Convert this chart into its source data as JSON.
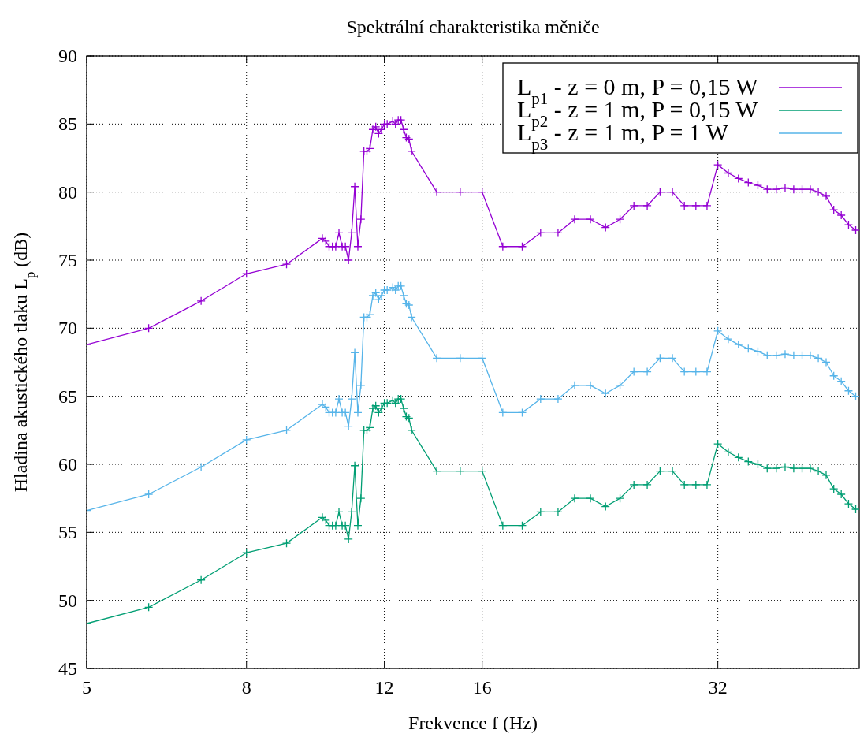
{
  "chart_data": {
    "type": "line",
    "title": "Spektrální charakteristika měniče",
    "xlabel": "Frekvence f (Hz)",
    "ylabel": "Hladina akustického tlaku L$_{p}$ (dB)",
    "log": "x",
    "xlim": [
      5,
      48.5
    ],
    "xticks": [
      5,
      8,
      12,
      16,
      32
    ],
    "ylim": [
      45,
      90
    ],
    "yticks": [
      45,
      50,
      55,
      60,
      65,
      70,
      75,
      80,
      85,
      90
    ],
    "grid": true,
    "legend": "top right",
    "marker": "cross",
    "line_style": "solid",
    "x": [
      5,
      6,
      7,
      8,
      9,
      10,
      10.1,
      10.2,
      10.3,
      10.4,
      10.5,
      10.6,
      10.7,
      10.8,
      10.9,
      11,
      11.1,
      11.2,
      11.3,
      11.4,
      11.5,
      11.6,
      11.7,
      11.8,
      11.9,
      12,
      12.1,
      12.3,
      12.4,
      12.5,
      12.6,
      12.7,
      12.8,
      12.9,
      13,
      14,
      15,
      16,
      17,
      18,
      19,
      20,
      21,
      22,
      23,
      24,
      25,
      26,
      27,
      28,
      29,
      30,
      31,
      32,
      33,
      34,
      35,
      36,
      37,
      38,
      39,
      40,
      41,
      42,
      43,
      44,
      45,
      46,
      47,
      48
    ],
    "series": [
      {
        "name": "L$_{p1}$ - z = 0 m, P = 0,15 W",
        "color": "#9400d3",
        "values": [
          68.8,
          70.0,
          72.0,
          74.0,
          74.7,
          76.6,
          76.4,
          76.0,
          76.0,
          76.0,
          77.0,
          76.0,
          76.0,
          75.0,
          77.0,
          80.4,
          76.0,
          78.0,
          83.0,
          83.0,
          83.2,
          84.6,
          84.8,
          84.3,
          84.6,
          85.0,
          85.0,
          85.2,
          85.0,
          85.3,
          85.3,
          84.6,
          84.0,
          83.9,
          83.0,
          80,
          80,
          80,
          76,
          76,
          77,
          77,
          78,
          78,
          77.4,
          78,
          79,
          79,
          80,
          80,
          79,
          79,
          79,
          82.0,
          81.4,
          81.0,
          80.7,
          80.5,
          80.2,
          80.2,
          80.3,
          80.2,
          80.2,
          80.2,
          80.0,
          79.7,
          78.7,
          78.3,
          77.6,
          77.2
        ]
      },
      {
        "name": "L$_{p2}$ - z = 1 m, P = 0,15 W",
        "color": "#009e73",
        "values": [
          48.3,
          49.5,
          51.5,
          53.5,
          54.2,
          56.1,
          55.9,
          55.5,
          55.5,
          55.5,
          56.5,
          55.5,
          55.5,
          54.5,
          56.5,
          59.9,
          55.5,
          57.5,
          62.5,
          62.5,
          62.7,
          64.1,
          64.3,
          63.8,
          64.1,
          64.5,
          64.5,
          64.7,
          64.5,
          64.8,
          64.8,
          64.1,
          63.5,
          63.4,
          62.5,
          59.5,
          59.5,
          59.5,
          55.5,
          55.5,
          56.5,
          56.5,
          57.5,
          57.5,
          56.9,
          57.5,
          58.5,
          58.5,
          59.5,
          59.5,
          58.5,
          58.5,
          58.5,
          61.5,
          60.9,
          60.5,
          60.2,
          60.0,
          59.7,
          59.7,
          59.8,
          59.7,
          59.7,
          59.7,
          59.5,
          59.2,
          58.2,
          57.8,
          57.1,
          56.7
        ]
      },
      {
        "name": "L$_{p3}$ - z = 1 m, P = 1 W",
        "color": "#56b4e9",
        "values": [
          56.6,
          57.8,
          59.8,
          61.8,
          62.5,
          64.4,
          64.2,
          63.8,
          63.8,
          63.8,
          64.8,
          63.8,
          63.8,
          62.8,
          64.8,
          68.2,
          63.8,
          65.8,
          70.8,
          70.8,
          71.0,
          72.4,
          72.6,
          72.1,
          72.4,
          72.8,
          72.8,
          73.0,
          72.8,
          73.1,
          73.1,
          72.4,
          71.8,
          71.7,
          70.8,
          67.8,
          67.8,
          67.8,
          63.8,
          63.8,
          64.8,
          64.8,
          65.8,
          65.8,
          65.2,
          65.8,
          66.8,
          66.8,
          67.8,
          67.8,
          66.8,
          66.8,
          66.8,
          69.8,
          69.2,
          68.8,
          68.5,
          68.3,
          68.0,
          68.0,
          68.1,
          68.0,
          68.0,
          68.0,
          67.8,
          67.5,
          66.5,
          66.1,
          65.4,
          65.0
        ]
      }
    ]
  }
}
